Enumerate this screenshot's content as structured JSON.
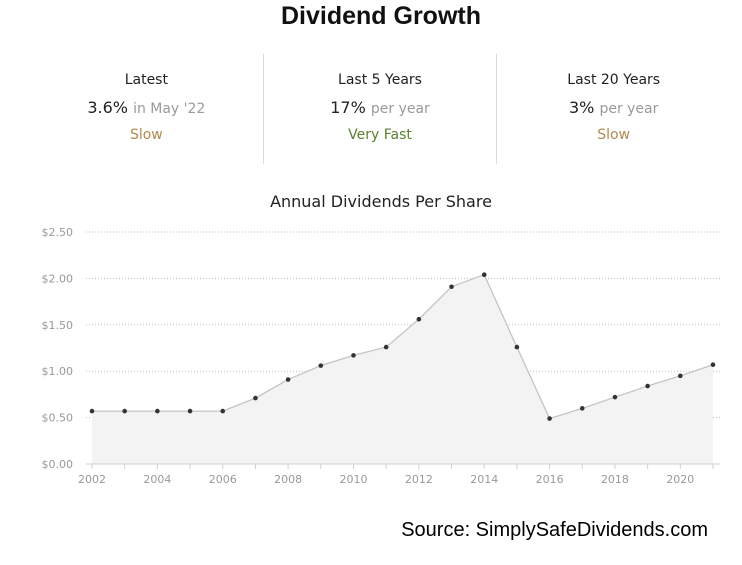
{
  "title": "Dividend Growth",
  "stats": [
    {
      "label": "Latest",
      "value": "3.6%",
      "suffix": "in May '22",
      "rating": "Slow",
      "rating_color": "#b08a4e"
    },
    {
      "label": "Last 5 Years",
      "value": "17%",
      "suffix": "per year",
      "rating": "Very Fast",
      "rating_color": "#5a7f2e"
    },
    {
      "label": "Last 20 Years",
      "value": "3%",
      "suffix": "per year",
      "rating": "Slow",
      "rating_color": "#b08a4e"
    }
  ],
  "chart_data": {
    "type": "area",
    "title": "Annual Dividends Per Share",
    "x": [
      2002,
      2003,
      2004,
      2005,
      2006,
      2007,
      2008,
      2009,
      2010,
      2011,
      2012,
      2013,
      2014,
      2015,
      2016,
      2017,
      2018,
      2019,
      2020,
      2021
    ],
    "values": [
      0.57,
      0.57,
      0.57,
      0.57,
      0.57,
      0.71,
      0.91,
      1.06,
      1.17,
      1.26,
      1.56,
      1.91,
      2.04,
      1.26,
      0.49,
      0.6,
      0.72,
      0.84,
      0.95,
      1.07
    ],
    "xticks": [
      2002,
      2004,
      2006,
      2008,
      2010,
      2012,
      2014,
      2016,
      2018,
      2020
    ],
    "yticks": [
      0,
      0.5,
      1.0,
      1.5,
      2.0,
      2.5
    ],
    "ytick_labels": [
      "$0.00",
      "$0.50",
      "$1.00",
      "$1.50",
      "$2.00",
      "$2.50"
    ],
    "ylim": [
      0,
      2.5
    ],
    "xlim": [
      2002,
      2021
    ],
    "grid": true,
    "colors": {
      "line": "#c4c4c4",
      "fill": "#f3f3f3",
      "point": "#333333",
      "grid": "#bdbdbd",
      "tick_text": "#999999"
    }
  },
  "source": "Source: SimplySafeDividends.com"
}
